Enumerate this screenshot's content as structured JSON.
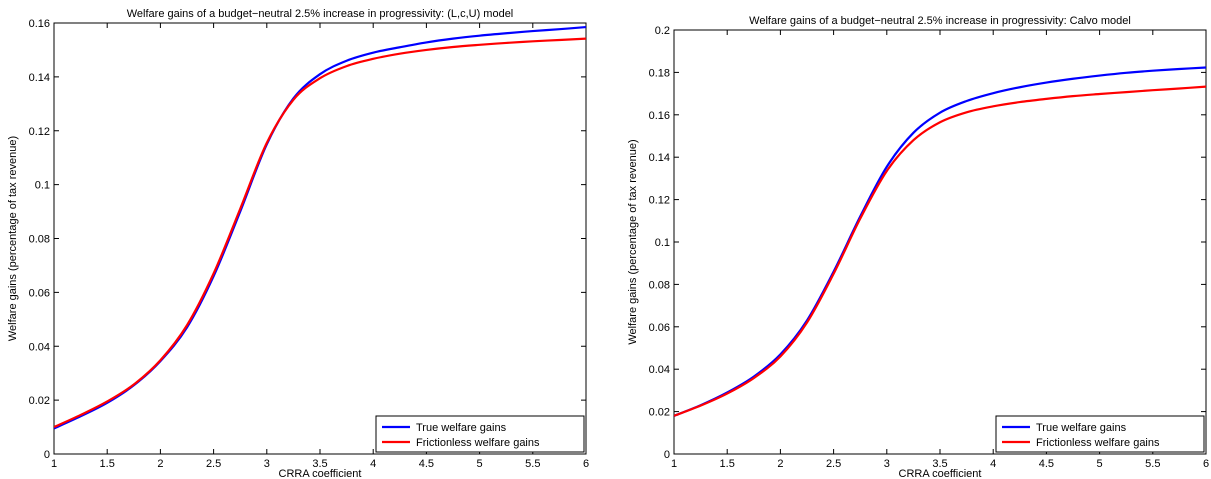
{
  "chart_data": [
    {
      "type": "line",
      "title": "Welfare gains of a budget−neutral 2.5% increase in progressivity: (L,c,U) model",
      "xlabel": "CRRA coefficient",
      "ylabel": "Welfare gains (percentage of tax revenue)",
      "xlim": [
        1,
        6
      ],
      "ylim": [
        0,
        0.16
      ],
      "xticks": [
        "1",
        "1.5",
        "2",
        "2.5",
        "3",
        "3.5",
        "4",
        "4.5",
        "5",
        "5.5",
        "6"
      ],
      "yticks": [
        "0",
        "0.02",
        "0.04",
        "0.06",
        "0.08",
        "0.1",
        "0.12",
        "0.14",
        "0.16"
      ],
      "grid": false,
      "legend_position": "bottom-right",
      "x": [
        1.0,
        1.25,
        1.5,
        1.75,
        2.0,
        2.25,
        2.5,
        2.75,
        3.0,
        3.25,
        3.5,
        3.75,
        4.0,
        4.25,
        4.5,
        4.75,
        5.0,
        5.25,
        5.5,
        5.75,
        6.0
      ],
      "series": [
        {
          "name": "True welfare gains",
          "color": "#0000ff",
          "values": [
            0.0095,
            0.014,
            0.019,
            0.0255,
            0.0345,
            0.047,
            0.066,
            0.09,
            0.115,
            0.132,
            0.141,
            0.146,
            0.149,
            0.151,
            0.1528,
            0.1542,
            0.1553,
            0.1562,
            0.157,
            0.1577,
            0.1585
          ]
        },
        {
          "name": "Frictionless welfare gains",
          "color": "#ff0000",
          "values": [
            0.01,
            0.0145,
            0.0195,
            0.0258,
            0.0348,
            0.0478,
            0.067,
            0.091,
            0.1155,
            0.1315,
            0.1395,
            0.144,
            0.1467,
            0.1486,
            0.15,
            0.1511,
            0.1519,
            0.1526,
            0.1532,
            0.1537,
            0.1542
          ]
        }
      ]
    },
    {
      "type": "line",
      "title": "Welfare gains of a budget−neutral 2.5% increase in progressivity: Calvo model",
      "xlabel": "CRRA coefficient",
      "ylabel": "Welfare gains (percentage of tax revenue)",
      "xlim": [
        1,
        6
      ],
      "ylim": [
        0,
        0.2
      ],
      "xticks": [
        "1",
        "1.5",
        "2",
        "2.5",
        "3",
        "3.5",
        "4",
        "4.5",
        "5",
        "5.5",
        "6"
      ],
      "yticks": [
        "0",
        "0.02",
        "0.04",
        "0.06",
        "0.08",
        "0.1",
        "0.12",
        "0.14",
        "0.16",
        "0.18",
        "0.2"
      ],
      "grid": false,
      "legend_position": "bottom-right",
      "x": [
        1.0,
        1.25,
        1.5,
        1.75,
        2.0,
        2.25,
        2.5,
        2.75,
        3.0,
        3.25,
        3.5,
        3.75,
        4.0,
        4.25,
        4.5,
        4.75,
        5.0,
        5.25,
        5.5,
        5.75,
        6.0
      ],
      "series": [
        {
          "name": "True welfare gains",
          "color": "#0000ff",
          "values": [
            0.018,
            0.023,
            0.029,
            0.0365,
            0.047,
            0.063,
            0.086,
            0.112,
            0.1355,
            0.1515,
            0.161,
            0.1665,
            0.1702,
            0.173,
            0.1752,
            0.177,
            0.1785,
            0.1798,
            0.1808,
            0.1816,
            0.1823
          ]
        },
        {
          "name": "Frictionless welfare gains",
          "color": "#ff0000",
          "values": [
            0.018,
            0.0228,
            0.0285,
            0.0358,
            0.046,
            0.062,
            0.085,
            0.111,
            0.1335,
            0.148,
            0.1565,
            0.1612,
            0.164,
            0.166,
            0.1675,
            0.1688,
            0.1698,
            0.1707,
            0.1716,
            0.1724,
            0.1733
          ]
        }
      ]
    }
  ]
}
